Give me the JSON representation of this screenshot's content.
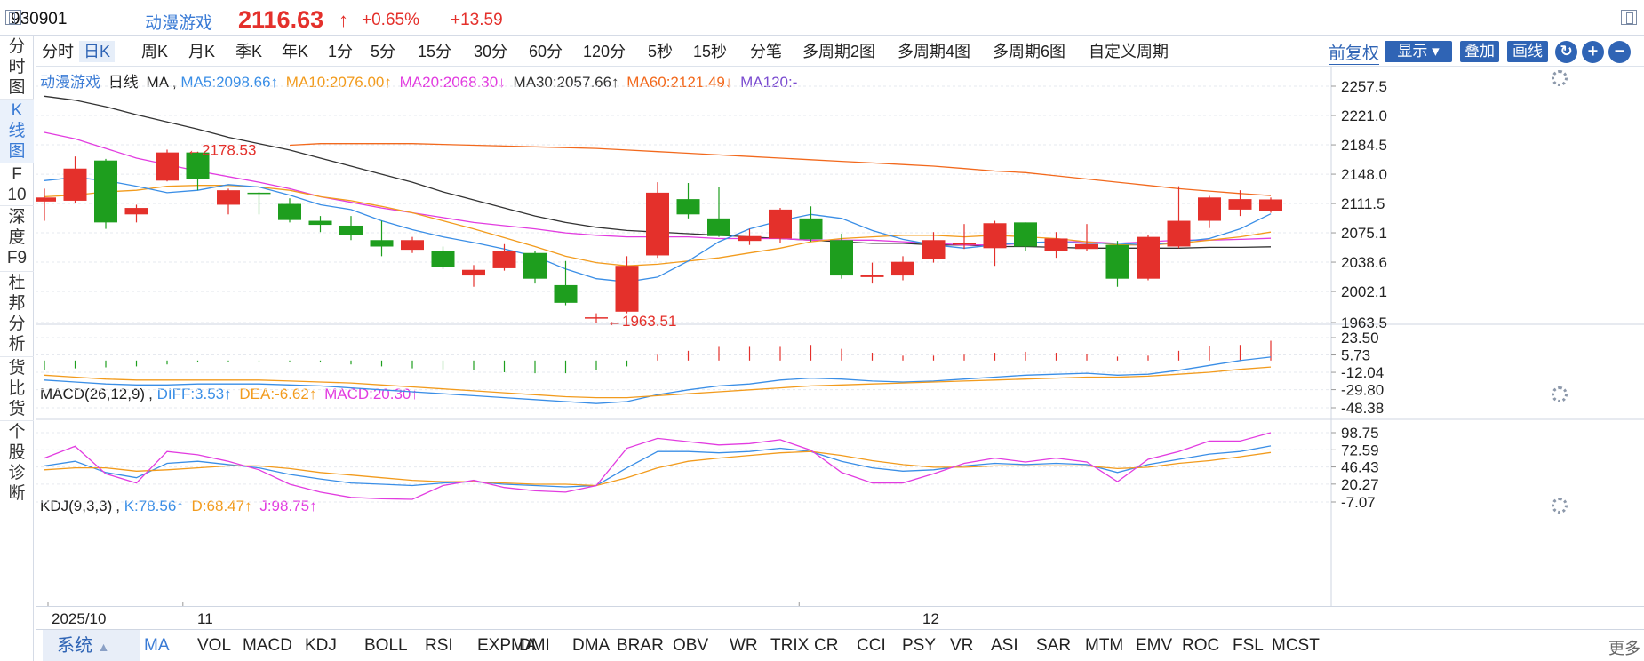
{
  "header": {
    "code": "930901",
    "name": "动漫游戏",
    "price": "2116.63",
    "arrow": "↑",
    "pct": "+0.65%",
    "change": "+13.59"
  },
  "sidebar": {
    "items": [
      {
        "label": "分\n时\n图"
      },
      {
        "label": "K\n线\n图"
      },
      {
        "label": "F\n10"
      },
      {
        "label": "深\n度\nF9"
      },
      {
        "label": "杜\n邦\n分\n析"
      },
      {
        "label": "货\n比\n货"
      },
      {
        "label": "个\n股\n诊\n断"
      }
    ]
  },
  "toolbar": {
    "periods": [
      "分时",
      "日K",
      "周K",
      "月K",
      "季K",
      "年K",
      "1分",
      "5分",
      "15分",
      "30分",
      "60分",
      "120分",
      "5秒",
      "15秒",
      "分笔",
      "多周期2图",
      "多周期4图",
      "多周期6图",
      "自定义周期"
    ],
    "active_period": "日K",
    "fuquan": "前复权",
    "display": "显示",
    "overlay": "叠加",
    "draw": "画线"
  },
  "main_legend": {
    "name": "动漫游戏",
    "period": "日线",
    "ma": "MA",
    "ma5": "MA5:2098.66↑",
    "ma10": "MA10:2076.00↑",
    "ma20": "MA20:2068.30↓",
    "ma30": "MA30:2057.66↑",
    "ma60": "MA60:2121.49↓",
    "ma120": "MA120:-"
  },
  "macd_legend": {
    "title": "MACD(26,12,9)",
    "diff": "DIFF:3.53↑",
    "dea": "DEA:-6.62↑",
    "macd": "MACD:20.30↑"
  },
  "kdj_legend": {
    "title": "KDJ(9,3,3)",
    "k": "K:78.56↑",
    "d": "D:68.47↑",
    "j": "J:98.75↑"
  },
  "price_axis": [
    "2257.5",
    "2221.0",
    "2184.5",
    "2148.0",
    "2111.5",
    "2075.1",
    "2038.6",
    "2002.1",
    "1963.5"
  ],
  "macd_axis": [
    "23.50",
    "5.73",
    "-12.04",
    "-29.80",
    "-48.38"
  ],
  "kdj_axis": [
    "98.75",
    "72.59",
    "46.43",
    "20.27",
    "-7.07"
  ],
  "annotations": {
    "high": "2178.53",
    "low": "1963.51"
  },
  "date_axis": {
    "labels": [
      "2025/10",
      "11",
      "12"
    ]
  },
  "indicators": {
    "system": "系统",
    "items": [
      "MA",
      "VOL",
      "MACD",
      "KDJ",
      "BOLL",
      "RSI",
      "EXPMA",
      "DMI",
      "DMA",
      "BRAR",
      "OBV",
      "WR",
      "TRIX",
      "CR",
      "CCI",
      "PSY",
      "VR",
      "ASI",
      "SAR",
      "MTM",
      "EMV",
      "ROC",
      "FSL",
      "MCST"
    ],
    "more": "更多"
  },
  "colors": {
    "up": "#e4302b",
    "down": "#1e9e1e",
    "ma5": "#3a8ee6",
    "ma10": "#f29b1d",
    "ma20": "#e23ce0",
    "ma30": "#333333",
    "ma60": "#f2691d",
    "ma120": "#7a4bd0"
  },
  "chart_data": {
    "type": "candlestick",
    "price_range": [
      1963.5,
      2257.5
    ],
    "candles": [
      {
        "o": 2114,
        "c": 2119,
        "h": 2130,
        "l": 2090
      },
      {
        "o": 2115,
        "c": 2155,
        "h": 2170,
        "l": 2112
      },
      {
        "o": 2165,
        "c": 2088,
        "h": 2167,
        "l": 2080
      },
      {
        "o": 2098,
        "c": 2106,
        "h": 2110,
        "l": 2088
      },
      {
        "o": 2140,
        "c": 2175,
        "h": 2178.5,
        "l": 2139
      },
      {
        "o": 2175,
        "c": 2142,
        "h": 2176,
        "l": 2128
      },
      {
        "o": 2110,
        "c": 2128,
        "h": 2130,
        "l": 2098
      },
      {
        "o": 2125,
        "c": 2124,
        "h": 2126,
        "l": 2098
      },
      {
        "o": 2111,
        "c": 2091,
        "h": 2118,
        "l": 2088
      },
      {
        "o": 2090,
        "c": 2085,
        "h": 2096,
        "l": 2076
      },
      {
        "o": 2084,
        "c": 2072,
        "h": 2096,
        "l": 2066
      },
      {
        "o": 2066,
        "c": 2058,
        "h": 2090,
        "l": 2046
      },
      {
        "o": 2054,
        "c": 2066,
        "h": 2070,
        "l": 2050
      },
      {
        "o": 2053,
        "c": 2033,
        "h": 2058,
        "l": 2030
      },
      {
        "o": 2022,
        "c": 2029,
        "h": 2035,
        "l": 2008
      },
      {
        "o": 2031,
        "c": 2053,
        "h": 2061,
        "l": 2028
      },
      {
        "o": 2050,
        "c": 2018,
        "h": 2052,
        "l": 2012
      },
      {
        "o": 2010,
        "c": 1988,
        "h": 2040,
        "l": 1985
      },
      {
        "o": 1969,
        "c": 1970,
        "h": 1975,
        "l": 1963.5
      },
      {
        "o": 1977,
        "c": 2034,
        "h": 2046,
        "l": 1975
      },
      {
        "o": 2047,
        "c": 2125,
        "h": 2138,
        "l": 2044
      },
      {
        "o": 2117,
        "c": 2098,
        "h": 2137,
        "l": 2093
      },
      {
        "o": 2093,
        "c": 2071,
        "h": 2132,
        "l": 2070
      },
      {
        "o": 2065,
        "c": 2071,
        "h": 2080,
        "l": 2060
      },
      {
        "o": 2068,
        "c": 2104,
        "h": 2106,
        "l": 2062
      },
      {
        "o": 2093,
        "c": 2067,
        "h": 2108,
        "l": 2064
      },
      {
        "o": 2066,
        "c": 2022,
        "h": 2074,
        "l": 2018
      },
      {
        "o": 2020,
        "c": 2023,
        "h": 2038,
        "l": 2012
      },
      {
        "o": 2022,
        "c": 2039,
        "h": 2046,
        "l": 2016
      },
      {
        "o": 2043,
        "c": 2066,
        "h": 2076,
        "l": 2038
      },
      {
        "o": 2062,
        "c": 2062,
        "h": 2086,
        "l": 2055
      },
      {
        "o": 2056,
        "c": 2087,
        "h": 2090,
        "l": 2034
      },
      {
        "o": 2088,
        "c": 2058,
        "h": 2088,
        "l": 2052
      },
      {
        "o": 2052,
        "c": 2068,
        "h": 2076,
        "l": 2044
      },
      {
        "o": 2055,
        "c": 2061,
        "h": 2086,
        "l": 2052
      },
      {
        "o": 2060,
        "c": 2018,
        "h": 2065,
        "l": 2008
      },
      {
        "o": 2018,
        "c": 2070,
        "h": 2072,
        "l": 2016
      },
      {
        "o": 2058,
        "c": 2090,
        "h": 2133,
        "l": 2056
      },
      {
        "o": 2090,
        "c": 2119,
        "h": 2121,
        "l": 2081
      },
      {
        "o": 2104,
        "c": 2117,
        "h": 2128,
        "l": 2096
      },
      {
        "o": 2102,
        "c": 2116.6,
        "h": 2119,
        "l": 2100
      }
    ],
    "ma5": [
      2140,
      2144,
      2140,
      2133,
      2125,
      2128,
      2135,
      2132,
      2122,
      2110,
      2104,
      2090,
      2079,
      2070,
      2063,
      2055,
      2046,
      2030,
      2018,
      2014,
      2020,
      2040,
      2064,
      2080,
      2090,
      2098,
      2093,
      2078,
      2067,
      2060,
      2056,
      2060,
      2063,
      2064,
      2062,
      2062,
      2060,
      2064,
      2068,
      2080,
      2098.66
    ],
    "ma10": [
      2120,
      2122,
      2126,
      2128,
      2133,
      2134,
      2134,
      2132,
      2128,
      2120,
      2115,
      2108,
      2100,
      2090,
      2080,
      2069,
      2058,
      2046,
      2038,
      2034,
      2036,
      2040,
      2044,
      2050,
      2056,
      2064,
      2068,
      2070,
      2072,
      2072,
      2070,
      2072,
      2070,
      2068,
      2064,
      2060,
      2060,
      2062,
      2066,
      2070,
      2076.0
    ],
    "ma20": [
      2200,
      2192,
      2180,
      2168,
      2160,
      2152,
      2145,
      2138,
      2130,
      2120,
      2113,
      2106,
      2100,
      2094,
      2088,
      2084,
      2080,
      2075,
      2072,
      2070,
      2070,
      2070,
      2068,
      2068,
      2068,
      2066,
      2066,
      2066,
      2064,
      2062,
      2060,
      2060,
      2062,
      2064,
      2064,
      2062,
      2064,
      2066,
      2066,
      2067,
      2068.3
    ],
    "ma30": [
      2245,
      2240,
      2232,
      2222,
      2213,
      2204,
      2194,
      2186,
      2178,
      2168,
      2158,
      2148,
      2138,
      2126,
      2116,
      2106,
      2096,
      2088,
      2082,
      2078,
      2076,
      2074,
      2072,
      2070,
      2068,
      2066,
      2064,
      2062,
      2062,
      2060,
      2060,
      2058,
      2058,
      2057,
      2056,
      2056,
      2056,
      2056,
      2057,
      2057,
      2057.66
    ],
    "ma60": [
      null,
      null,
      null,
      null,
      null,
      null,
      null,
      null,
      2184,
      2186,
      2186,
      2186,
      2186,
      2185,
      2184,
      2183,
      2182,
      2181,
      2180,
      2178,
      2176,
      2174,
      2172,
      2170,
      2168,
      2166,
      2164,
      2162,
      2160,
      2158,
      2155,
      2152,
      2150,
      2146,
      2142,
      2138,
      2134,
      2130,
      2127,
      2124,
      2121.49
    ],
    "macd_range": [
      -48.38,
      23.5
    ],
    "macd_bars": [
      -10,
      -8,
      -7,
      -6,
      -4,
      -2,
      -1,
      -1,
      -1,
      -2,
      -4,
      -6,
      -8,
      -9,
      -10,
      -12,
      -13,
      -13,
      -10,
      -6,
      6,
      10,
      14,
      14,
      14,
      16,
      12,
      8,
      5,
      5,
      6,
      8,
      9,
      8,
      7,
      4,
      5,
      10,
      15,
      16,
      20.3
    ],
    "diff": [
      -20,
      -22,
      -24,
      -25,
      -25,
      -24,
      -24,
      -24,
      -25,
      -26,
      -28,
      -30,
      -32,
      -34,
      -36,
      -38,
      -40,
      -42,
      -44,
      -42,
      -35,
      -30,
      -26,
      -24,
      -20,
      -18,
      -19,
      -21,
      -22,
      -21,
      -19,
      -17,
      -15,
      -14,
      -13,
      -15,
      -14,
      -10,
      -5,
      0,
      3.53
    ],
    "dea": [
      -15,
      -17,
      -19,
      -20,
      -20,
      -20,
      -20,
      -20,
      -21,
      -22,
      -23,
      -25,
      -27,
      -29,
      -31,
      -33,
      -35,
      -37,
      -38,
      -38,
      -36,
      -34,
      -32,
      -30,
      -28,
      -26,
      -25,
      -24,
      -23,
      -22,
      -21,
      -20,
      -19,
      -18,
      -17,
      -17,
      -16,
      -14,
      -12,
      -9,
      -6.62
    ],
    "kdj_range": [
      -7.07,
      98.75
    ],
    "k": [
      48,
      55,
      38,
      30,
      52,
      55,
      50,
      45,
      35,
      28,
      22,
      20,
      18,
      22,
      24,
      20,
      18,
      16,
      18,
      45,
      70,
      70,
      68,
      70,
      75,
      70,
      55,
      45,
      40,
      42,
      48,
      52,
      50,
      52,
      50,
      38,
      50,
      58,
      66,
      70,
      78.56
    ],
    "d": [
      42,
      45,
      45,
      40,
      42,
      45,
      48,
      48,
      44,
      38,
      34,
      30,
      26,
      24,
      24,
      22,
      20,
      20,
      18,
      30,
      45,
      55,
      60,
      64,
      68,
      70,
      64,
      56,
      50,
      46,
      46,
      48,
      48,
      48,
      48,
      44,
      46,
      52,
      56,
      62,
      68.47
    ],
    "j": [
      60,
      78,
      36,
      22,
      70,
      65,
      55,
      42,
      20,
      8,
      0,
      -2,
      -3,
      18,
      26,
      15,
      10,
      8,
      18,
      75,
      90,
      85,
      80,
      82,
      88,
      72,
      38,
      22,
      22,
      36,
      52,
      60,
      54,
      60,
      54,
      24,
      58,
      70,
      86,
      86,
      98.75
    ]
  }
}
